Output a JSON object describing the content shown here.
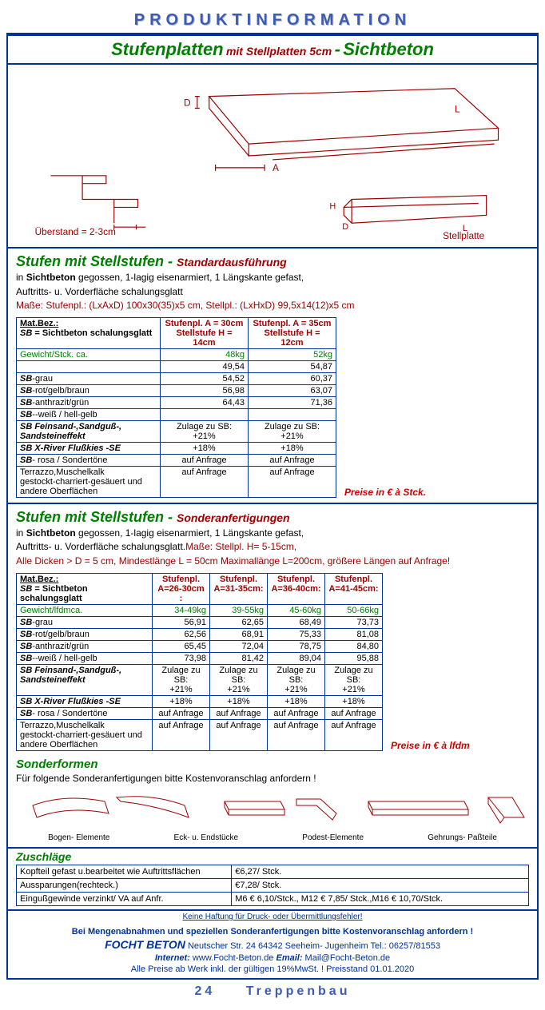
{
  "header": "PRODUKTINFORMATION",
  "title": {
    "main": "Stufenplatten",
    "mid": "mit Stellplatten 5cm",
    "dash": "-",
    "end": "Sichtbeton"
  },
  "diagram": {
    "ueberstand": "Überstand = 2-3cm",
    "stellplatte": "Stellplatte",
    "D": "D",
    "A": "A",
    "L": "L",
    "H": "H"
  },
  "sec1": {
    "title": "Stufen mit Stellstufen -",
    "sub": "Standardausführung",
    "line1a": "in ",
    "line1b": "Sichtbeton",
    "line1c": " gegossen, 1-lagig eisenarmiert, 1 Längskante gefast,",
    "line2": "Auftritts- u. Vorderfläche schalungsglatt",
    "masse": "Maße: Stufenpl.: (LxAxD) 100x30(35)x5 cm, Stellpl.: (LxHxD) 99,5x14(12)x5 cm",
    "colA_l1": "Stufenpl. A = 30cm",
    "colA_l2": "Stellstufe H = 14cm",
    "colB_l1": "Stufenpl. A = 35cm",
    "colB_l2": "Stellstufe H = 12cm",
    "matbez": "Mat.Bez.:",
    "sb_def": " = Sichtbeton schalungsglatt",
    "rows": [
      {
        "label": "Gewicht/Stck. ca.",
        "a": "48kg",
        "b": "52kg",
        "green": true
      },
      {
        "label": "",
        "a": "49,54",
        "b": "54,87"
      },
      {
        "label_b": "SB",
        "label_r": "-grau",
        "a": "54,52",
        "b": "60,37"
      },
      {
        "label_b": "SB",
        "label_r": "-rot/gelb/braun",
        "a": "56,98",
        "b": "63,07"
      },
      {
        "label_b": "SB",
        "label_r": "-anthrazit/grün",
        "a": "64,43",
        "b": "71,36"
      },
      {
        "label_b": "SB",
        "label_r": "--weiß / hell-gelb",
        "a": "",
        "b": ""
      },
      {
        "label_b": "SB Feinsand-,Sandguß-,\nSandsteineffekt",
        "a": "Zulage zu SB:\n+21%",
        "b": "Zulage zu SB:\n+21%",
        "ctr": true
      },
      {
        "label_b": "SB X-River Flußkies -SE",
        "a": "+18%",
        "b": "+18%",
        "ctr": true
      },
      {
        "label_b": "SB",
        "label_r": "- rosa / Sondertöne",
        "a": "auf Anfrage",
        "b": "auf Anfrage",
        "ctr": true
      },
      {
        "label": "Terrazzo,Muschelkalk\ngestockt-charriert-gesäuert und\nandere Oberflächen",
        "a": "auf Anfrage",
        "b": "auf Anfrage",
        "ctr": true
      }
    ],
    "price": "Preise in  €  à Stck."
  },
  "sec2": {
    "title": "Stufen mit Stellstufen -",
    "sub": "Sonderanfertigungen",
    "line1a": "in ",
    "line1b": "Sichtbeton",
    "line1c": " gegossen, 1-lagig eisenarmiert, 1 Längskante gefast,",
    "line2": "Auftritts- u. Vorderfläche schalungsglatt.",
    "line2r": "Maße: Stellpl. H= 5-15cm,",
    "line3": "Alle Dicken > D = 5 cm, Mindestlänge L = 50cm Maximallänge L=200cm, größere Längen auf Anfrage!",
    "cols": [
      {
        "l1": "Stufenpl.",
        "l2": "A=26-30cm :"
      },
      {
        "l1": "Stufenpl.",
        "l2": "A=31-35cm:"
      },
      {
        "l1": "Stufenpl.",
        "l2": "A=36-40cm:"
      },
      {
        "l1": "Stufenpl.",
        "l2": "A=41-45cm:"
      }
    ],
    "rows": [
      {
        "label": "Gewicht/lfdmca.",
        "v": [
          "34-49kg",
          "39-55kg",
          "45-60kg",
          "50-66kg"
        ],
        "green": true
      },
      {
        "label_b": "SB",
        "label_r": "-grau",
        "v": [
          "56,91",
          "62,65",
          "68,49",
          "73,73"
        ]
      },
      {
        "label_b": "SB",
        "label_r": "-rot/gelb/braun",
        "v": [
          "62,56",
          "68,91",
          "75,33",
          "81,08"
        ]
      },
      {
        "label_b": "SB",
        "label_r": "-anthrazit/grün",
        "v": [
          "65,45",
          "72,04",
          "78,75",
          "84,80"
        ]
      },
      {
        "label_b": "SB",
        "label_r": "--weiß / hell-gelb",
        "v": [
          "73,98",
          "81,42",
          "89,04",
          "95,88"
        ]
      },
      {
        "label_b": "SB Feinsand-,Sandguß-,\nSandsteineffekt",
        "v": [
          "Zulage zu SB:\n+21%",
          "Zulage zu SB:\n+21%",
          "Zulage zu SB:\n+21%",
          "Zulage zu SB:\n+21%"
        ],
        "ctr": true
      },
      {
        "label_b": "SB X-River Flußkies -SE",
        "v": [
          "+18%",
          "+18%",
          "+18%",
          "+18%"
        ],
        "ctr": true
      },
      {
        "label_b": "SB",
        "label_r": "- rosa / Sondertöne",
        "v": [
          "auf Anfrage",
          "auf Anfrage",
          "auf Anfrage",
          "auf Anfrage"
        ],
        "ctr": true
      },
      {
        "label": "Terrazzo,Muschelkalk\ngestockt-charriert-gesäuert und\nandere Oberflächen",
        "v": [
          "auf Anfrage",
          "auf Anfrage",
          "auf Anfrage",
          "auf Anfrage"
        ],
        "ctr": true
      }
    ],
    "price": "Preise in  €  à lfdm"
  },
  "sonder": {
    "title": "Sonderformen",
    "desc": "Für folgende Sonderanfertigungen bitte Kostenvoranschlag anfordern !",
    "labels": [
      "Bogen- Elemente",
      "Eck- u. Endstücke",
      "Podest-Elemente",
      "Gehrungs- Paßteile"
    ]
  },
  "zuschlag": {
    "title": "Zuschläge",
    "rows": [
      {
        "a": "Kopfteil gefast u.bearbeitet wie Auftrittsflächen",
        "b": "€6,27/ Stck."
      },
      {
        "a": "Aussparungen(rechteck.)",
        "b": "€7,28/ Stck."
      },
      {
        "a": "Eingußgewinde verzinkt/ VA auf Anfr.",
        "b": "M6  € 6,10/Stck., M12  € 7,85/ Stck.,M16  € 10,70/Stck."
      }
    ]
  },
  "disclaimer": "Keine Haftung für Druck- oder Übermittlungsfehler!",
  "footer": {
    "l1": "Bei Mengenabnahmen und speziellen Sonderanfertigungen bitte Kostenvoranschlag anfordern !",
    "brand": "FOCHT BETON",
    "addr": " Neutscher Str. 24  64342 Seeheim- Jugenheim   Tel.: 06257/81553",
    "internet_l": "Internet:",
    "internet_v": " www.Focht-Beton.de     ",
    "email_l": "Email:",
    "email_v": " Mail@Focht-Beton.de",
    "l4": "Alle Preise ab Werk inkl. der gültigen 19%MwSt. !   Preisstand 01.01.2020"
  },
  "pagefoot": {
    "num": "24",
    "cat": "Treppenbau"
  }
}
